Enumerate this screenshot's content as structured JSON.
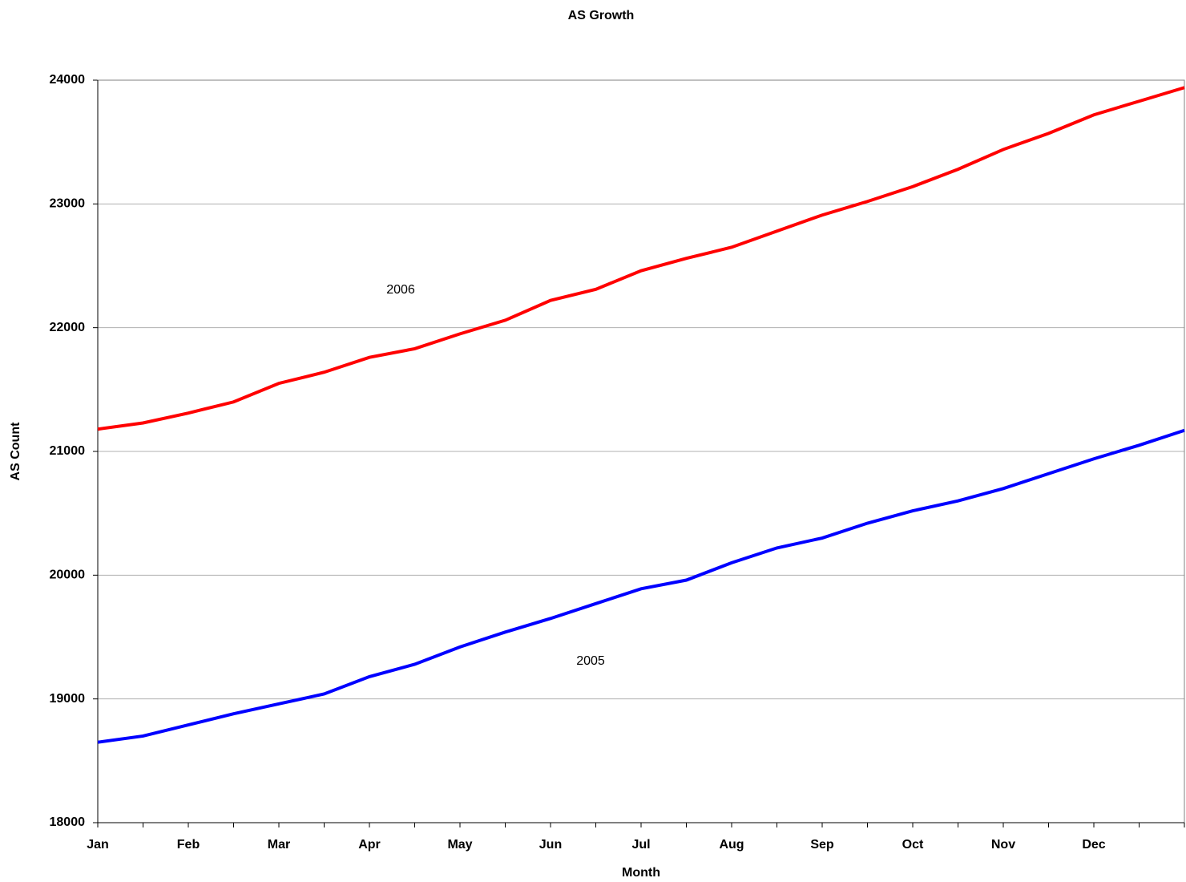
{
  "chart_data": {
    "type": "line",
    "title": "AS Growth",
    "x_label": "Month",
    "y_label": "AS Count",
    "categories": [
      "Jan",
      null,
      "Feb",
      null,
      "Mar",
      null,
      "Apr",
      null,
      "May",
      null,
      "Jun",
      null,
      "Jul",
      null,
      "Aug",
      null,
      "Sep",
      null,
      "Oct",
      null,
      "Nov",
      null,
      "Dec",
      null,
      null
    ],
    "series": [
      {
        "name": "2006",
        "color": "#ff0000",
        "values": [
          21180,
          21230,
          21310,
          21400,
          21550,
          21640,
          21760,
          21830,
          21950,
          22060,
          22220,
          22310,
          22460,
          22560,
          22650,
          22780,
          22910,
          23020,
          23140,
          23280,
          23440,
          23570,
          23720,
          23830,
          23940
        ]
      },
      {
        "name": "2005",
        "color": "#0000ff",
        "values": [
          18650,
          18700,
          18790,
          18880,
          18960,
          19040,
          19180,
          19280,
          19420,
          19540,
          19650,
          19770,
          19890,
          19960,
          20100,
          20220,
          20300,
          20420,
          20520,
          20600,
          20700,
          20820,
          20940,
          21050,
          21170
        ]
      }
    ],
    "annotations": [
      {
        "text": "2006",
        "color": "#e8703a"
      },
      {
        "text": "2005",
        "color": "#3a3acc"
      }
    ],
    "ylim": [
      18000,
      24000
    ],
    "yticks": [
      18000,
      19000,
      20000,
      21000,
      22000,
      23000,
      24000
    ],
    "grid": true
  }
}
